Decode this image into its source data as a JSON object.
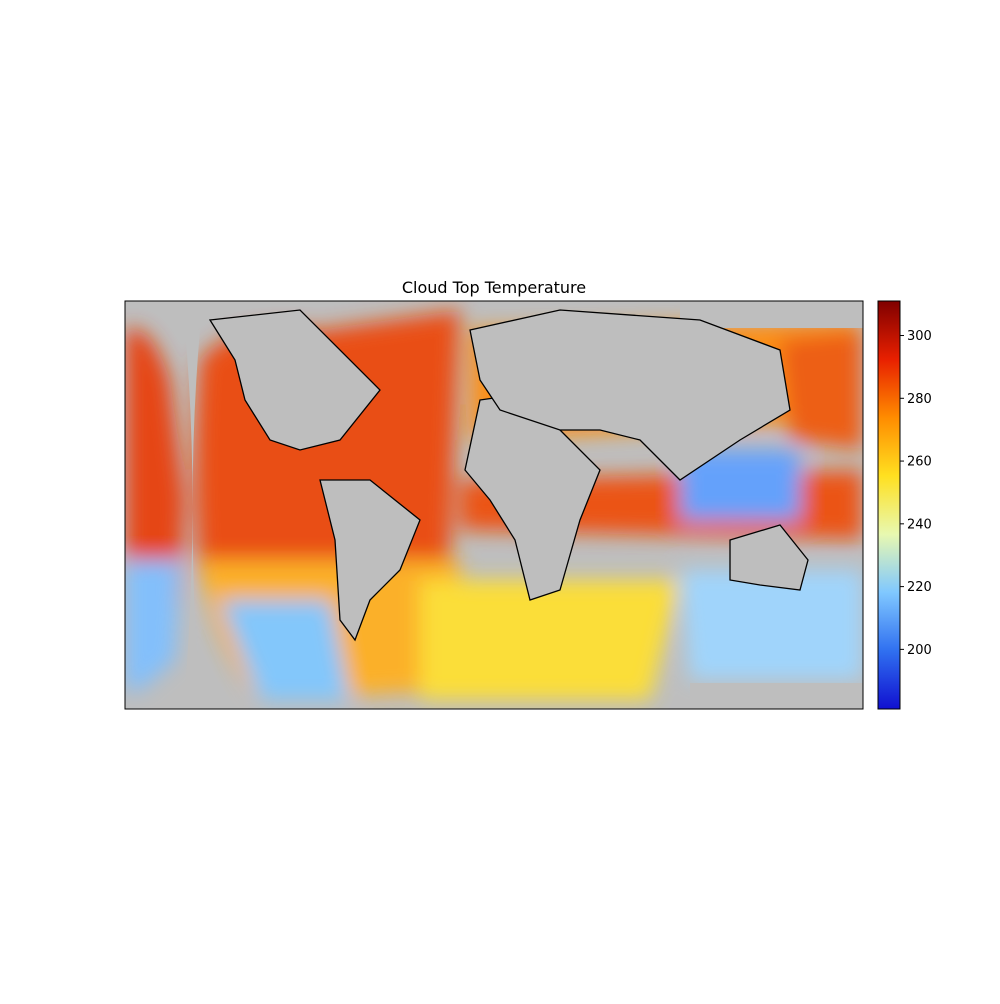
{
  "chart_data": {
    "type": "map",
    "title": "Cloud Top Temperature",
    "colorbar": {
      "clim": [
        181,
        311
      ],
      "ticks": [
        200,
        220,
        240,
        260,
        280,
        300
      ],
      "colors": [
        "#1010d0",
        "#3070f0",
        "#80c8ff",
        "#e8f8b0",
        "#ffe020",
        "#ff8c00",
        "#e82000",
        "#800000"
      ]
    }
  }
}
